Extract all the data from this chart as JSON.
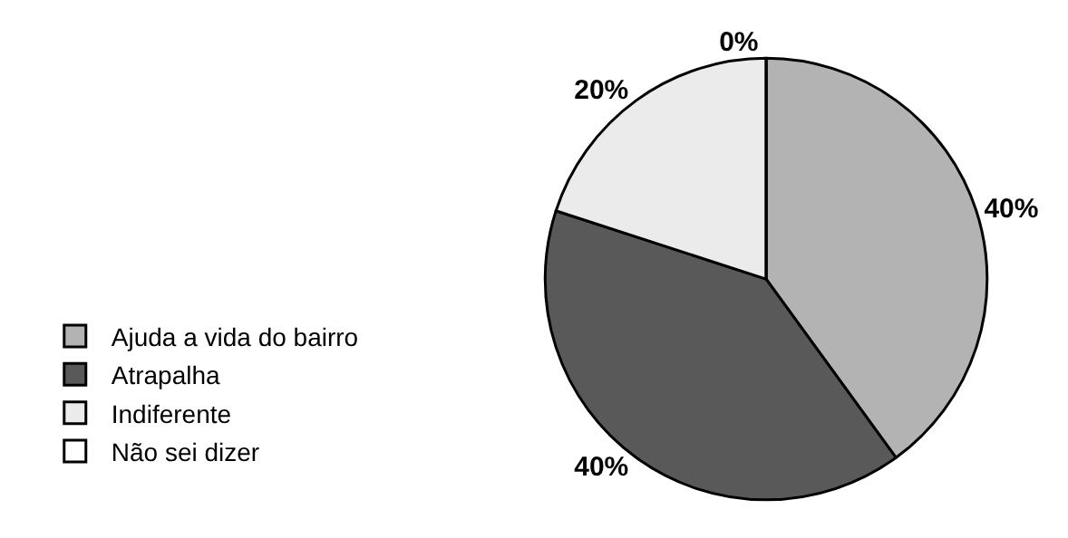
{
  "chart_data": {
    "type": "pie",
    "categories": [
      "Ajuda a vida do bairro",
      "Atrapalha",
      "Indiferente",
      "Não sei dizer"
    ],
    "values": [
      40,
      40,
      20,
      0
    ],
    "colors": [
      "#b3b3b3",
      "#595959",
      "#ebebeb",
      "#ffffff"
    ],
    "value_labels": [
      "40%",
      "40%",
      "20%",
      "0%"
    ],
    "legend": "left"
  }
}
